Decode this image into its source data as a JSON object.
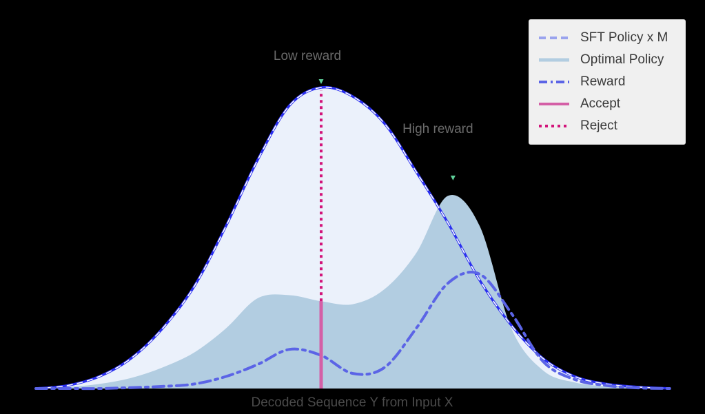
{
  "chart_data": {
    "type": "area",
    "title": "",
    "xlabel": "Decoded Sequence Y from Input X",
    "ylabel": "",
    "xlim": [
      0,
      1
    ],
    "ylim": [
      0,
      1
    ],
    "grid": false,
    "legend_position": "top-right",
    "x": [
      0.0,
      0.05,
      0.1,
      0.15,
      0.2,
      0.25,
      0.3,
      0.35,
      0.4,
      0.45,
      0.5,
      0.55,
      0.6,
      0.65,
      0.7,
      0.75,
      0.8,
      0.85,
      0.9,
      0.95,
      1.0
    ],
    "series": [
      {
        "name": "SFT Policy x M",
        "style": "dashed",
        "color": "#9aa3ee",
        "values": [
          0.0,
          0.01,
          0.04,
          0.1,
          0.2,
          0.34,
          0.54,
          0.76,
          0.94,
          1.0,
          0.97,
          0.88,
          0.72,
          0.55,
          0.36,
          0.21,
          0.1,
          0.04,
          0.015,
          0.005,
          0.0
        ]
      },
      {
        "name": "Optimal Policy",
        "style": "filled",
        "color": "#b2cde1",
        "values": [
          0.0,
          0.005,
          0.015,
          0.035,
          0.07,
          0.12,
          0.2,
          0.3,
          0.31,
          0.29,
          0.28,
          0.33,
          0.45,
          0.64,
          0.54,
          0.2,
          0.06,
          0.02,
          0.007,
          0.002,
          0.0
        ]
      },
      {
        "name": "Reward",
        "style": "dash-dot",
        "color": "#5b64e6",
        "values": [
          0.0,
          0.0,
          0.0,
          0.003,
          0.007,
          0.015,
          0.04,
          0.08,
          0.13,
          0.11,
          0.05,
          0.07,
          0.2,
          0.35,
          0.38,
          0.25,
          0.09,
          0.03,
          0.01,
          0.002,
          0.0
        ]
      }
    ],
    "annotations": [
      {
        "text": "Low reward",
        "x": 0.45,
        "y": 1.0
      },
      {
        "text": "High reward",
        "x": 0.658,
        "y": 0.68
      }
    ],
    "sample_x": 0.45,
    "sample_accept_top": 0.29,
    "sample_reject_top": 1.0,
    "accept_label": "Accept",
    "reject_label": "Reject",
    "colors": {
      "sft_fill": "#ebf1fb",
      "sft_edge": "#2a2ff0",
      "optimal": "#b2cde1",
      "reward": "#5b64e6",
      "accept": "#d45fa6",
      "reject": "#d2147a",
      "marker": "#5fd09a"
    }
  }
}
